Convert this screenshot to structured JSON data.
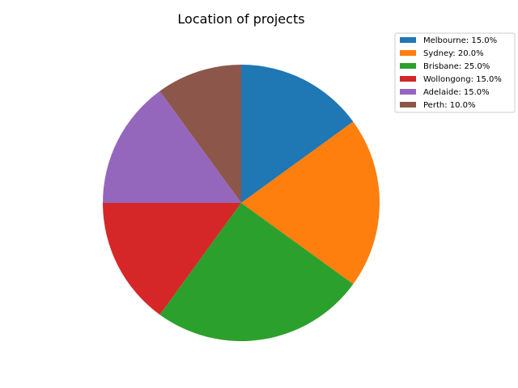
{
  "chart_data": {
    "type": "pie",
    "title": "Location of projects",
    "start_angle_deg": 90,
    "direction": "clockwise",
    "legend_position": "top-right",
    "slices": [
      {
        "label": "Melbourne",
        "value": 15.0,
        "legend": "Melbourne: 15.0%",
        "color": "#1f77b4"
      },
      {
        "label": "Sydney",
        "value": 20.0,
        "legend": "Sydney: 20.0%",
        "color": "#ff7f0e"
      },
      {
        "label": "Brisbane",
        "value": 25.0,
        "legend": "Brisbane: 25.0%",
        "color": "#2ca02c"
      },
      {
        "label": "Wollongong",
        "value": 15.0,
        "legend": "Wollongong: 15.0%",
        "color": "#d62728"
      },
      {
        "label": "Adelaide",
        "value": 15.0,
        "legend": "Adelaide: 15.0%",
        "color": "#9467bd"
      },
      {
        "label": "Perth",
        "value": 10.0,
        "legend": "Perth: 10.0%",
        "color": "#8c564b"
      }
    ]
  }
}
